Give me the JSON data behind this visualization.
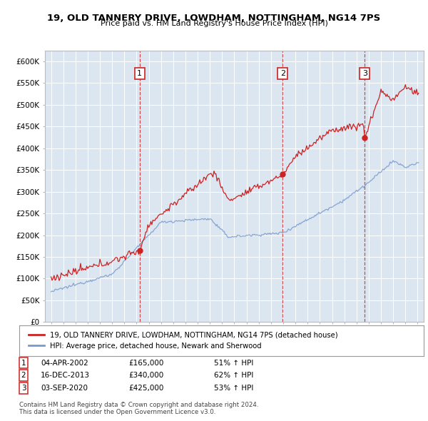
{
  "title": "19, OLD TANNERY DRIVE, LOWDHAM, NOTTINGHAM, NG14 7PS",
  "subtitle": "Price paid vs. HM Land Registry's House Price Index (HPI)",
  "bg_color": "#dce6f1",
  "red_line_label": "19, OLD TANNERY DRIVE, LOWDHAM, NOTTINGHAM, NG14 7PS (detached house)",
  "blue_line_label": "HPI: Average price, detached house, Newark and Sherwood",
  "sales": [
    {
      "num": 1,
      "date": "04-APR-2002",
      "price": 165000,
      "hpi_change": "51% ↑ HPI",
      "x_year": 2002.25
    },
    {
      "num": 2,
      "date": "16-DEC-2013",
      "price": 340000,
      "hpi_change": "62% ↑ HPI",
      "x_year": 2013.96
    },
    {
      "num": 3,
      "date": "03-SEP-2020",
      "price": 425000,
      "hpi_change": "53% ↑ HPI",
      "x_year": 2020.67
    }
  ],
  "footer1": "Contains HM Land Registry data © Crown copyright and database right 2024.",
  "footer2": "This data is licensed under the Open Government Licence v3.0.",
  "ylim": [
    0,
    625000
  ],
  "yticks": [
    0,
    50000,
    100000,
    150000,
    200000,
    250000,
    300000,
    350000,
    400000,
    450000,
    500000,
    550000,
    600000
  ],
  "xlim_start": 1994.5,
  "xlim_end": 2025.5,
  "red_color": "#cc2222",
  "blue_color": "#7799cc"
}
